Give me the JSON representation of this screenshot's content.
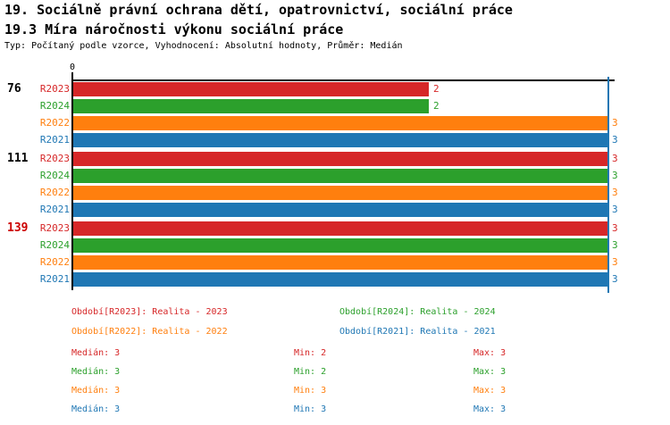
{
  "header": {
    "title_line1": "19. Sociálně právní ochrana dětí, opatrovnictví, sociální práce",
    "title_line2": "19.3 Míra náročnosti výkonu sociální práce",
    "meta_line": "Typ: Počítaný podle vzorce, Vyhodnocení: Absolutní hodnoty, Průměr: Medián"
  },
  "colors": {
    "series": {
      "R2023": "#d62728",
      "R2024": "#2ca02c",
      "R2022": "#ff7f0e",
      "R2021": "#1f77b4"
    },
    "axis": "#000000",
    "marker_line": "#1f77b4",
    "group_label": "#000000",
    "group_label_highlight": "#cc0000"
  },
  "chart_data": {
    "type": "bar",
    "orientation": "horizontal",
    "title": "19.3 Míra náročnosti výkonu sociální práce",
    "xlabel": "",
    "ylabel": "",
    "xlim": [
      0,
      3
    ],
    "origin_tick_label": "0",
    "marker_value": 3,
    "grid": false,
    "legend_position": "bottom",
    "series_order": [
      "R2023",
      "R2024",
      "R2022",
      "R2021"
    ],
    "groups": [
      {
        "label": "76",
        "highlight": false,
        "values": {
          "R2023": 2,
          "R2024": 2,
          "R2022": 3,
          "R2021": 3
        }
      },
      {
        "label": "111",
        "highlight": false,
        "values": {
          "R2023": 3,
          "R2024": 3,
          "R2022": 3,
          "R2021": 3
        }
      },
      {
        "label": "139",
        "highlight": true,
        "values": {
          "R2023": 3,
          "R2024": 3,
          "R2022": 3,
          "R2021": 3
        }
      }
    ]
  },
  "legend": {
    "items": [
      {
        "series": "R2023",
        "label": "Období[R2023]: Realita - 2023"
      },
      {
        "series": "R2024",
        "label": "Období[R2024]: Realita - 2024"
      },
      {
        "series": "R2022",
        "label": "Období[R2022]: Realita - 2022"
      },
      {
        "series": "R2021",
        "label": "Období[R2021]: Realita - 2021"
      }
    ]
  },
  "stats": {
    "median_label": "Medián",
    "min_label": "Min",
    "max_label": "Max",
    "rows": [
      {
        "series": "R2023",
        "median": "3",
        "min": "2",
        "max": "3"
      },
      {
        "series": "R2024",
        "median": "3",
        "min": "2",
        "max": "3"
      },
      {
        "series": "R2022",
        "median": "3",
        "min": "3",
        "max": "3"
      },
      {
        "series": "R2021",
        "median": "3",
        "min": "3",
        "max": "3"
      }
    ]
  }
}
